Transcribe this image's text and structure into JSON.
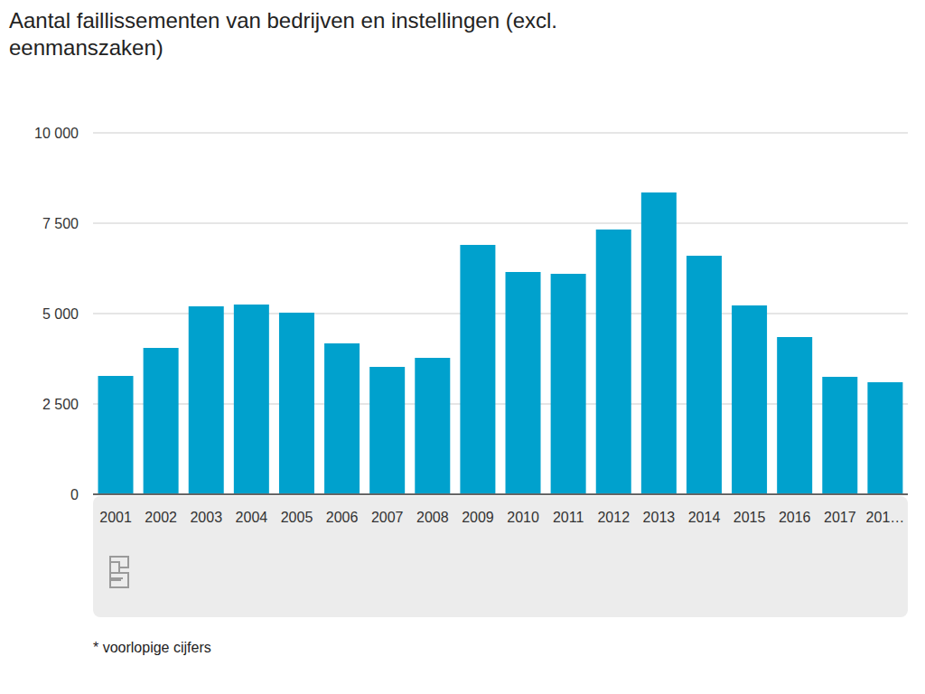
{
  "chart_data": {
    "type": "bar",
    "title": "Aantal faillissementen van bedrijven en instellingen (excl. eenmanszaken)",
    "categories": [
      "2001",
      "2002",
      "2003",
      "2004",
      "2005",
      "2006",
      "2007",
      "2008",
      "2009",
      "2010",
      "2011",
      "2012",
      "2013",
      "2014",
      "2015",
      "2016",
      "2017",
      "201…"
    ],
    "values": [
      3275,
      4050,
      5200,
      5250,
      5025,
      4175,
      3525,
      3775,
      6900,
      6150,
      6100,
      7325,
      8350,
      6600,
      5225,
      4350,
      3250,
      3100
    ],
    "color": "#00a1cd",
    "ylim": [
      0,
      10000
    ],
    "yticks": [
      0,
      {
        "value": 2500,
        "label": "2 500"
      },
      {
        "value": 5000,
        "label": "5 000"
      },
      {
        "value": 7500,
        "label": "7 500"
      },
      {
        "value": 10000,
        "label": "10 000"
      }
    ],
    "grid": true,
    "annotations": [
      "* voorlopige cijfers"
    ]
  }
}
